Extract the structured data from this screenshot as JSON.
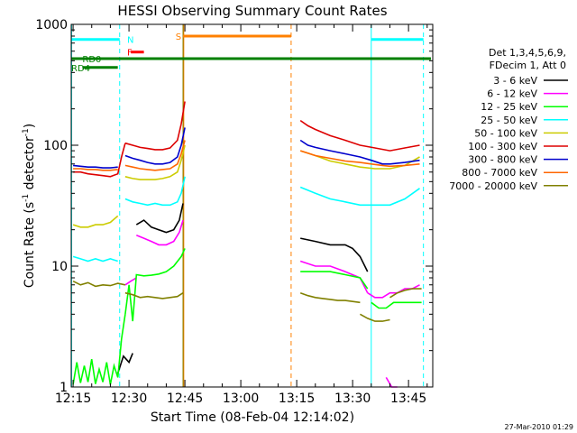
{
  "chart_data": {
    "type": "line",
    "title": "HESSI Observing Summary Count Rates",
    "xlabel": "Start Time (08-Feb-04 12:14:02)",
    "ylabel_main": "Count Rate (s",
    "ylabel_sup1": "-1",
    "ylabel_mid": " detector",
    "ylabel_sup2": "-1",
    "ylabel_end": ")",
    "timestamp": "27-Mar-2010 01:29",
    "x_range_min": [
      14.5,
      111.5
    ],
    "y_log": true,
    "y_range": [
      1,
      1000
    ],
    "x_ticks": [
      {
        "v": 15,
        "label": "12:15"
      },
      {
        "v": 30,
        "label": "12:30"
      },
      {
        "v": 45,
        "label": "12:45"
      },
      {
        "v": 60,
        "label": "13:00"
      },
      {
        "v": 75,
        "label": "13:15"
      },
      {
        "v": 90,
        "label": "13:30"
      },
      {
        "v": 105,
        "label": "13:45"
      }
    ],
    "y_ticks": [
      {
        "v": 1,
        "label": "1"
      },
      {
        "v": 10,
        "label": "10"
      },
      {
        "v": 100,
        "label": "100"
      },
      {
        "v": 1000,
        "label": "1000"
      }
    ],
    "legend_header": [
      "Det 1,3,4,5,6,9,",
      "FDecim 1, Att 0"
    ],
    "legend_position": "right",
    "series": [
      {
        "name": "3 - 6 keV",
        "color": "#000000",
        "segments": [
          {
            "x": [
              27,
              28.5,
              30,
              31
            ],
            "y": [
              1.3,
              1.8,
              1.6,
              1.9
            ]
          },
          {
            "x": [
              32,
              34,
              36,
              38,
              40,
              42,
              43.5,
              44.5
            ],
            "y": [
              22,
              24,
              21,
              20,
              19,
              20,
              24,
              33
            ]
          },
          {
            "x": [
              76,
              80,
              84,
              88,
              90,
              92,
              94
            ],
            "y": [
              17,
              16,
              15,
              15,
              14,
              12,
              9
            ]
          }
        ]
      },
      {
        "name": "6 - 12 keV",
        "color": "#ff00ff",
        "segments": [
          {
            "x": [
              29,
              30.5,
              32
            ],
            "y": [
              7,
              7.5,
              8
            ]
          },
          {
            "x": [
              32,
              34,
              36,
              38,
              40,
              42,
              43.5,
              44.5
            ],
            "y": [
              18,
              17,
              16,
              15,
              15,
              16,
              19,
              24
            ]
          },
          {
            "x": [
              76,
              80,
              84,
              88,
              92,
              94
            ],
            "y": [
              11,
              10,
              10,
              9,
              8,
              6
            ]
          },
          {
            "x": [
              94,
              96,
              98,
              100,
              102,
              104,
              106,
              108
            ],
            "y": [
              6,
              5.5,
              5.5,
              6,
              6,
              6.5,
              6.5,
              7
            ]
          },
          {
            "x": [
              99,
              100.5,
              102
            ],
            "y": [
              1.2,
              1,
              1
            ]
          }
        ]
      },
      {
        "name": "12 - 25 keV",
        "color": "#00ff00",
        "segments": [
          {
            "x": [
              15,
              16,
              17,
              18,
              19,
              20,
              21,
              22,
              23,
              24,
              25,
              26,
              27,
              28,
              29
            ],
            "y": [
              1.05,
              1.6,
              1.08,
              1.5,
              1.1,
              1.7,
              1.06,
              1.4,
              1.1,
              1.6,
              1.05,
              1.5,
              1.2,
              2.5,
              4
            ]
          },
          {
            "x": [
              29,
              30,
              31,
              32,
              34,
              36,
              38,
              40,
              42,
              44,
              45
            ],
            "y": [
              4,
              7,
              3.5,
              8.5,
              8.3,
              8.4,
              8.6,
              9,
              10,
              12,
              14
            ]
          },
          {
            "x": [
              76,
              80,
              84,
              88,
              92,
              94
            ],
            "y": [
              9,
              9,
              9,
              8.5,
              8,
              6.5
            ]
          },
          {
            "x": [
              95,
              97,
              99,
              101,
              103,
              105,
              107,
              108.5
            ],
            "y": [
              5,
              4.5,
              4.5,
              5,
              5,
              5,
              5,
              5
            ]
          }
        ]
      },
      {
        "name": "25 - 50 keV",
        "color": "#00ffff",
        "segments": [
          {
            "x": [
              15,
              17,
              19,
              21,
              23,
              25,
              27
            ],
            "y": [
              12,
              11.5,
              11,
              11.5,
              11,
              11.5,
              11
            ]
          },
          {
            "x": [
              29,
              31,
              33,
              35,
              37,
              39,
              41,
              43,
              44,
              45
            ],
            "y": [
              36,
              34,
              33,
              32,
              33,
              32,
              32,
              34,
              40,
              55
            ]
          },
          {
            "x": [
              76,
              80,
              84,
              88,
              92,
              96,
              100,
              104,
              108
            ],
            "y": [
              45,
              40,
              36,
              34,
              32,
              32,
              32,
              36,
              44
            ]
          }
        ]
      },
      {
        "name": "50 - 100 keV",
        "color": "#cccc00",
        "segments": [
          {
            "x": [
              15,
              17,
              19,
              21,
              23,
              25,
              27
            ],
            "y": [
              22,
              21,
              21,
              22,
              22,
              23,
              26
            ]
          },
          {
            "x": [
              29,
              31,
              33,
              35,
              37,
              39,
              41,
              43,
              44,
              45
            ],
            "y": [
              55,
              53,
              52,
              52,
              52,
              53,
              55,
              60,
              75,
              100
            ]
          },
          {
            "x": [
              76,
              80,
              84,
              88,
              92,
              96,
              100,
              104,
              108
            ],
            "y": [
              90,
              82,
              74,
              70,
              66,
              64,
              64,
              68,
              80
            ]
          }
        ]
      },
      {
        "name": "100 - 300 keV",
        "color": "#dd0000",
        "segments": [
          {
            "x": [
              15,
              17,
              19,
              21,
              23,
              25,
              27,
              28,
              29
            ],
            "y": [
              60,
              60,
              58,
              57,
              56,
              55,
              58,
              80,
              104
            ]
          },
          {
            "x": [
              29,
              31,
              33,
              35,
              37,
              39,
              41,
              43,
              44,
              45
            ],
            "y": [
              104,
              100,
              96,
              94,
              92,
              92,
              95,
              110,
              150,
              230
            ]
          },
          {
            "x": [
              76,
              78,
              80,
              84,
              88,
              92,
              96,
              100,
              104,
              108
            ],
            "y": [
              160,
              145,
              135,
              120,
              110,
              100,
              95,
              90,
              95,
              100
            ]
          }
        ]
      },
      {
        "name": "300 - 800 keV",
        "color": "#0000cc",
        "segments": [
          {
            "x": [
              15,
              17,
              19,
              21,
              23,
              25,
              27
            ],
            "y": [
              68,
              67,
              66,
              66,
              65,
              65,
              66
            ]
          },
          {
            "x": [
              29,
              31,
              33,
              35,
              37,
              39,
              41,
              43,
              44,
              45
            ],
            "y": [
              82,
              78,
              75,
              72,
              70,
              70,
              72,
              80,
              100,
              140
            ]
          },
          {
            "x": [
              76,
              78,
              80,
              84,
              88,
              92,
              95,
              98,
              100,
              104,
              108
            ],
            "y": [
              110,
              100,
              96,
              90,
              85,
              80,
              75,
              70,
              70,
              72,
              75
            ]
          }
        ]
      },
      {
        "name": "800 - 7000 keV",
        "color": "#ff6600",
        "segments": [
          {
            "x": [
              15,
              17,
              19,
              21,
              23,
              25,
              27
            ],
            "y": [
              64,
              64,
              63,
              63,
              62,
              62,
              63
            ]
          },
          {
            "x": [
              29,
              31,
              33,
              35,
              37,
              39,
              41,
              43,
              44,
              45
            ],
            "y": [
              68,
              66,
              64,
              63,
              62,
              63,
              64,
              70,
              85,
              110
            ]
          },
          {
            "x": [
              76,
              78,
              80,
              84,
              88,
              92,
              95,
              98,
              100,
              104,
              108
            ],
            "y": [
              90,
              86,
              82,
              78,
              74,
              72,
              70,
              68,
              67,
              68,
              70
            ]
          }
        ]
      },
      {
        "name": "7000 - 20000 keV",
        "color": "#808000",
        "segments": [
          {
            "x": [
              15,
              17,
              19,
              21,
              23,
              25,
              27,
              29
            ],
            "y": [
              7.5,
              7,
              7.3,
              6.8,
              7,
              6.9,
              7.2,
              7
            ]
          },
          {
            "x": [
              29,
              31,
              33,
              35,
              37,
              39,
              41,
              43,
              44.5
            ],
            "y": [
              6,
              5.8,
              5.5,
              5.6,
              5.5,
              5.4,
              5.5,
              5.6,
              6
            ]
          },
          {
            "x": [
              76,
              78,
              80,
              82,
              84,
              86,
              88,
              90,
              92
            ],
            "y": [
              6,
              5.7,
              5.5,
              5.4,
              5.3,
              5.2,
              5.2,
              5.1,
              5
            ]
          },
          {
            "x": [
              92,
              94,
              96,
              98,
              100
            ],
            "y": [
              4,
              3.7,
              3.5,
              3.5,
              3.6
            ]
          },
          {
            "x": [
              100,
              102,
              104,
              106,
              108.5
            ],
            "y": [
              5.5,
              6,
              6.3,
              6.5,
              6.5
            ]
          }
        ]
      }
    ],
    "state_bars": [
      {
        "label": "N",
        "color": "#00ffff",
        "segments": [
          [
            14.5,
            27.5
          ],
          [
            95,
            109
          ]
        ],
        "level": 750,
        "label_x": 29.5
      },
      {
        "label": "S",
        "color": "#ff8000",
        "segments": [
          [
            44.5,
            73.5
          ]
        ],
        "level": 800,
        "label_x": 42.5
      },
      {
        "label": "F",
        "color": "#ff0000",
        "segments": [
          [
            30.5,
            34
          ]
        ],
        "level": 590,
        "label_x": 29.5
      },
      {
        "label": "RD0",
        "color": "#008000",
        "segments": [
          [
            14.5,
            111
          ]
        ],
        "level": 520,
        "label_x": 17.5
      },
      {
        "label": "RD4",
        "color": "#008000",
        "segments": [
          [
            17.5,
            27
          ]
        ],
        "level": 440,
        "label_x": 14.5
      }
    ],
    "markers": [
      {
        "x": 14.6,
        "color": "#00ffff",
        "style": "solid"
      },
      {
        "x": 27.5,
        "color": "#00ffff",
        "style": "dashed"
      },
      {
        "x": 95,
        "color": "#00ffff",
        "style": "solid"
      },
      {
        "x": 109,
        "color": "#00ffff",
        "style": "dashed"
      },
      {
        "x": 44.7,
        "color": "#ff8000",
        "style": "solid"
      },
      {
        "x": 73.5,
        "color": "#ff8000",
        "style": "dashed"
      },
      {
        "x": 44.5,
        "color": "#808000",
        "style": "solid"
      }
    ]
  }
}
